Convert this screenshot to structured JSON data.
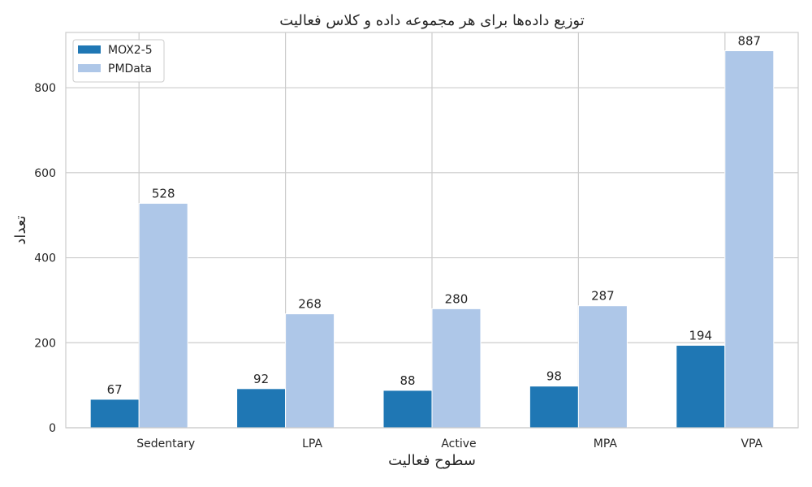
{
  "chart_data": {
    "type": "bar",
    "title": "توزیع داده‌ها برای هر مجموعه داده و کلاس فعالیت",
    "xlabel": "سطوح فعالیت",
    "ylabel": "تعداد",
    "categories": [
      "Sedentary",
      "LPA",
      "Active",
      "MPA",
      "VPA"
    ],
    "series": [
      {
        "name": "MOX2-5",
        "values": [
          67,
          92,
          88,
          98,
          194
        ],
        "color": "#1f77b4"
      },
      {
        "name": "PMData",
        "values": [
          528,
          268,
          280,
          287,
          887
        ],
        "color": "#aec7e8"
      }
    ],
    "ylim": [
      0,
      930
    ],
    "yticks": [
      0,
      200,
      400,
      600,
      800
    ],
    "grid": true,
    "legend_position": "top-left"
  }
}
